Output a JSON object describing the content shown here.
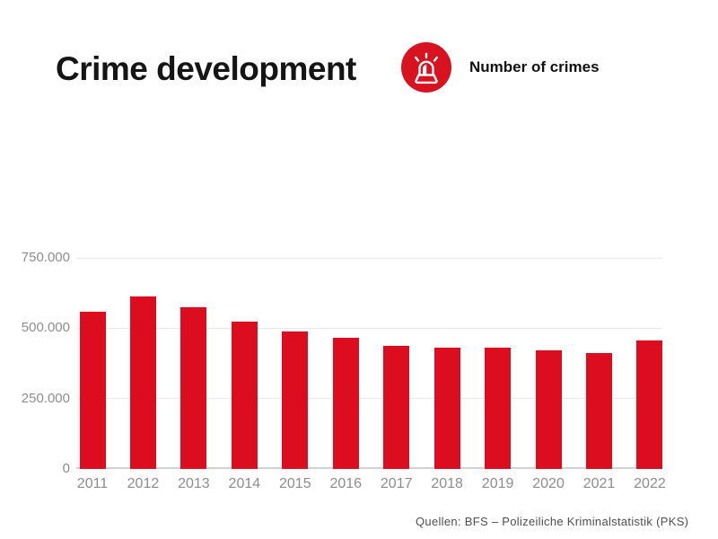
{
  "header": {
    "title": "Crime development",
    "legend": {
      "icon": "siren-icon",
      "label": "Number of crimes"
    }
  },
  "chart_data": {
    "type": "bar",
    "title": "Crime development",
    "legend_label": "Number of crimes",
    "categories": [
      "2011",
      "2012",
      "2013",
      "2014",
      "2015",
      "2016",
      "2017",
      "2018",
      "2019",
      "2020",
      "2021",
      "2022"
    ],
    "values": [
      560000,
      614000,
      576000,
      525000,
      488000,
      466000,
      438000,
      432000,
      431000,
      422000,
      413000,
      457000
    ],
    "xlabel": "",
    "ylabel": "",
    "ylim": [
      0,
      750000
    ],
    "yticks": [
      {
        "value": 0,
        "label": "0"
      },
      {
        "value": 250000,
        "label": "250.000"
      },
      {
        "value": 500000,
        "label": "500.000"
      },
      {
        "value": 750000,
        "label": "750.000"
      }
    ],
    "grid": "horizontal",
    "legend_position": "top-right"
  },
  "colors": {
    "bar": "#DC0D1E",
    "icon_circle": "#D8121F",
    "axis_label": "#8d8d8d",
    "gridline": "#e9e9e9",
    "baseline": "#d2d2d2",
    "title_text": "#151515",
    "source_text": "#4f4f4f"
  },
  "footer": {
    "source": "Quellen: BFS – Polizeiliche Kriminalstatistik (PKS)"
  }
}
